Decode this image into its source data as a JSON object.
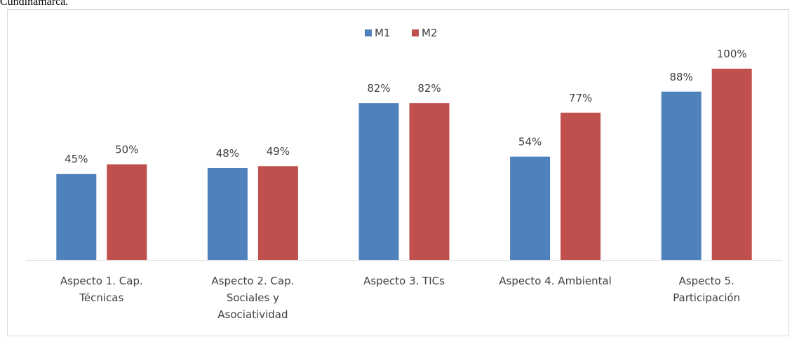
{
  "caption": "Cundinamarca.",
  "chart_data": {
    "type": "bar",
    "categories": [
      [
        "Aspecto 1. Cap.",
        "Técnicas"
      ],
      [
        "Aspecto 2. Cap.",
        "Sociales y",
        "Asociatividad"
      ],
      [
        "Aspecto 3. TICs"
      ],
      [
        "Aspecto 4. Ambiental"
      ],
      [
        "Aspecto 5.",
        "Participación"
      ]
    ],
    "series": [
      {
        "name": "M1",
        "color": "#4f81bd",
        "values": [
          45,
          48,
          82,
          54,
          88
        ],
        "labels": [
          "45%",
          "48%",
          "82%",
          "54%",
          "88%"
        ]
      },
      {
        "name": "M2",
        "color": "#c0504d",
        "values": [
          50,
          49,
          82,
          77,
          100
        ],
        "labels": [
          "50%",
          "49%",
          "82%",
          "77%",
          "100%"
        ]
      }
    ],
    "ylim": [
      0,
      100
    ],
    "legend": "top-center",
    "grid": false,
    "title": "",
    "xlabel": "",
    "ylabel": ""
  }
}
